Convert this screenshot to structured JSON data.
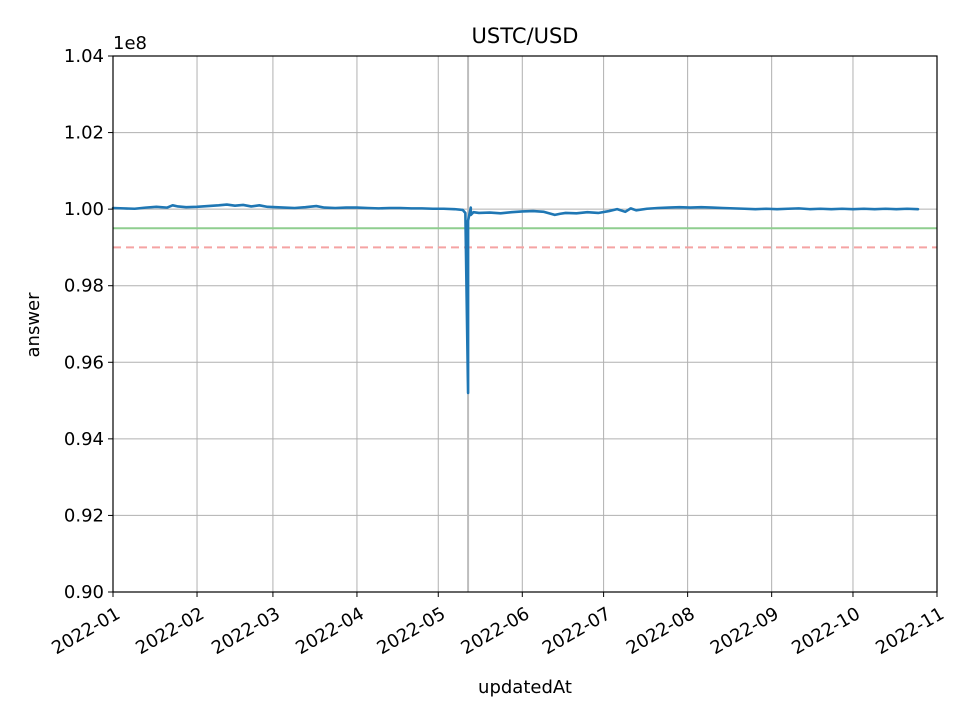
{
  "chart_data": {
    "type": "line",
    "title": "USTC/USD",
    "xlabel": "updatedAt",
    "ylabel": "answer",
    "y_offset_label": "1e8",
    "xlim": [
      "2022-01-01",
      "2022-11-01"
    ],
    "ylim": [
      0.9,
      1.04
    ],
    "y_scale_factor": 100000000,
    "grid": true,
    "x_ticks": [
      "2022-01",
      "2022-02",
      "2022-03",
      "2022-04",
      "2022-05",
      "2022-06",
      "2022-07",
      "2022-08",
      "2022-09",
      "2022-10",
      "2022-11"
    ],
    "x_tick_dates": [
      "2022-01-01",
      "2022-02-01",
      "2022-03-01",
      "2022-04-01",
      "2022-05-01",
      "2022-06-01",
      "2022-07-01",
      "2022-08-01",
      "2022-09-01",
      "2022-10-01",
      "2022-11-01"
    ],
    "y_ticks": [
      "0.90",
      "0.92",
      "0.94",
      "0.96",
      "0.98",
      "1.00",
      "1.02",
      "1.04"
    ],
    "y_tick_values": [
      0.9,
      0.92,
      0.94,
      0.96,
      0.98,
      1.0,
      1.02,
      1.04
    ],
    "reference_lines": [
      {
        "y": 0.995,
        "color": "#8fce8f",
        "style": "solid"
      },
      {
        "y": 0.99,
        "color": "#f5a3a3",
        "style": "dashed"
      },
      {
        "x": "2022-05-12",
        "color": "#bdbdbd",
        "style": "solid"
      }
    ],
    "series": [
      {
        "color": "#1f77b4",
        "x": [
          "2022-01-01",
          "2022-01-05",
          "2022-01-09",
          "2022-01-13",
          "2022-01-17",
          "2022-01-21",
          "2022-01-23",
          "2022-01-25",
          "2022-01-28",
          "2022-02-01",
          "2022-02-05",
          "2022-02-09",
          "2022-02-12",
          "2022-02-15",
          "2022-02-18",
          "2022-02-21",
          "2022-02-24",
          "2022-02-27",
          "2022-03-02",
          "2022-03-05",
          "2022-03-09",
          "2022-03-13",
          "2022-03-17",
          "2022-03-20",
          "2022-03-24",
          "2022-03-28",
          "2022-04-01",
          "2022-04-05",
          "2022-04-09",
          "2022-04-13",
          "2022-04-17",
          "2022-04-21",
          "2022-04-25",
          "2022-04-29",
          "2022-05-03",
          "2022-05-07",
          "2022-05-10",
          "2022-05-11",
          "2022-05-12",
          "2022-05-12",
          "2022-05-13",
          "2022-05-13",
          "2022-05-14",
          "2022-05-16",
          "2022-05-20",
          "2022-05-24",
          "2022-05-28",
          "2022-06-01",
          "2022-06-05",
          "2022-06-09",
          "2022-06-13",
          "2022-06-15",
          "2022-06-17",
          "2022-06-21",
          "2022-06-25",
          "2022-06-29",
          "2022-07-03",
          "2022-07-06",
          "2022-07-09",
          "2022-07-11",
          "2022-07-13",
          "2022-07-17",
          "2022-07-21",
          "2022-07-25",
          "2022-07-29",
          "2022-08-02",
          "2022-08-06",
          "2022-08-10",
          "2022-08-14",
          "2022-08-18",
          "2022-08-22",
          "2022-08-26",
          "2022-08-30",
          "2022-09-03",
          "2022-09-07",
          "2022-09-11",
          "2022-09-15",
          "2022-09-19",
          "2022-09-23",
          "2022-09-27",
          "2022-10-01",
          "2022-10-05",
          "2022-10-09",
          "2022-10-13",
          "2022-10-17",
          "2022-10-21",
          "2022-10-25"
        ],
        "values": [
          1.0003,
          1.0002,
          1.0001,
          1.0004,
          1.0006,
          1.0004,
          1.001,
          1.0007,
          1.0005,
          1.0006,
          1.0008,
          1.001,
          1.0012,
          1.0009,
          1.0011,
          1.0007,
          1.001,
          1.0006,
          1.0005,
          1.0004,
          1.0003,
          1.0005,
          1.0008,
          1.0004,
          1.0003,
          1.0004,
          1.0004,
          1.0003,
          1.0002,
          1.0003,
          1.0003,
          1.0002,
          1.0002,
          1.0001,
          1.0001,
          1.0,
          0.9998,
          0.999,
          0.952,
          0.997,
          1.0004,
          0.9985,
          0.9992,
          0.999,
          0.9991,
          0.9989,
          0.9992,
          0.9994,
          0.9995,
          0.9993,
          0.9985,
          0.9988,
          0.999,
          0.9989,
          0.9992,
          0.999,
          0.9995,
          1.0,
          0.9993,
          1.0002,
          0.9997,
          1.0001,
          1.0003,
          1.0004,
          1.0005,
          1.0004,
          1.0005,
          1.0004,
          1.0003,
          1.0002,
          1.0001,
          1.0,
          1.0001,
          1.0,
          1.0001,
          1.0002,
          1.0,
          1.0001,
          1.0,
          1.0001,
          1.0,
          1.0001,
          1.0,
          1.0001,
          1.0,
          1.0001,
          1.0
        ]
      }
    ]
  }
}
